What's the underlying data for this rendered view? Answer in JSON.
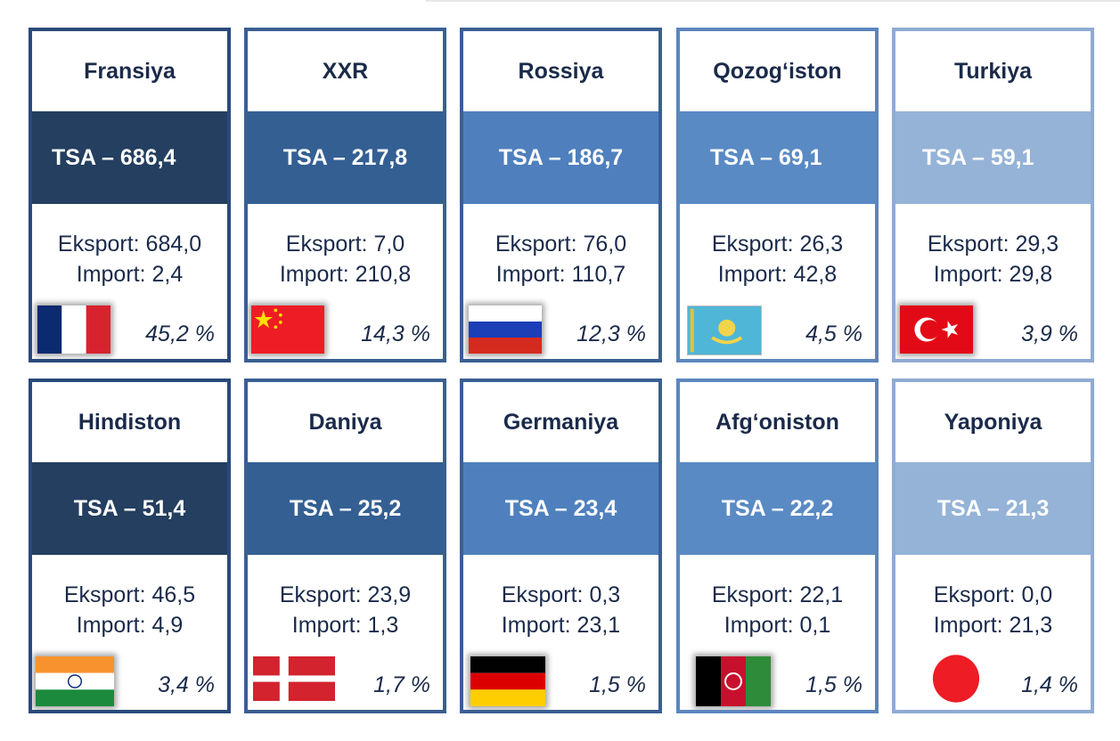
{
  "cards": [
    {
      "country": "Fransiya",
      "tsa": "TSA – 686,4",
      "export": "Eksport: 684,0",
      "import": "Import: 2,4",
      "share": "45,2 %",
      "flag": "france-flag"
    },
    {
      "country": "XXR",
      "tsa": "TSA – 217,8",
      "export": "Eksport: 7,0",
      "import": "Import: 210,8",
      "share": "14,3 %",
      "flag": "china-flag"
    },
    {
      "country": "Rossiya",
      "tsa": "TSA – 186,7",
      "export": "Eksport: 76,0",
      "import": "Import: 110,7",
      "share": "12,3 %",
      "flag": "russia-flag"
    },
    {
      "country": "Qozog‘iston",
      "tsa": "TSA – 69,1",
      "export": "Eksport: 26,3",
      "import": "Import: 42,8",
      "share": "4,5 %",
      "flag": "kazakhstan-flag"
    },
    {
      "country": "Turkiya",
      "tsa": "TSA – 59,1",
      "export": "Eksport: 29,3",
      "import": "Import: 29,8",
      "share": "3,9 %",
      "flag": "turkey-flag"
    },
    {
      "country": "Hindiston",
      "tsa": "TSA – 51,4",
      "export": "Eksport: 46,5",
      "import": "Import: 4,9",
      "share": "3,4 %",
      "flag": "india-flag"
    },
    {
      "country": "Daniya",
      "tsa": "TSA – 25,2",
      "export": "Eksport: 23,9",
      "import": "Import: 1,3",
      "share": "1,7 %",
      "flag": "denmark-flag"
    },
    {
      "country": "Germaniya",
      "tsa": "TSA –  23,4",
      "export": "Eksport: 0,3",
      "import": "Import: 23,1",
      "share": "1,5 %",
      "flag": "germany-flag"
    },
    {
      "country": "Afg‘oniston",
      "tsa": "TSA – 22,2",
      "export": "Eksport: 22,1",
      "import": "Import: 0,1",
      "share": "1,5 %",
      "flag": "afghanistan-flag"
    },
    {
      "country": "Yaponiya",
      "tsa": "TSA – 21,3",
      "export": "Eksport: 0,0",
      "import": "Import: 21,3",
      "share": "1,4 %",
      "flag": "japan-flag"
    }
  ],
  "colors": {
    "band_1": "#243f5f",
    "band_2": "#345f93",
    "band_3": "#4f80bd",
    "band_4": "#5a8ac4",
    "band_5": "#95b3d7",
    "text": "#1a2a4a"
  }
}
